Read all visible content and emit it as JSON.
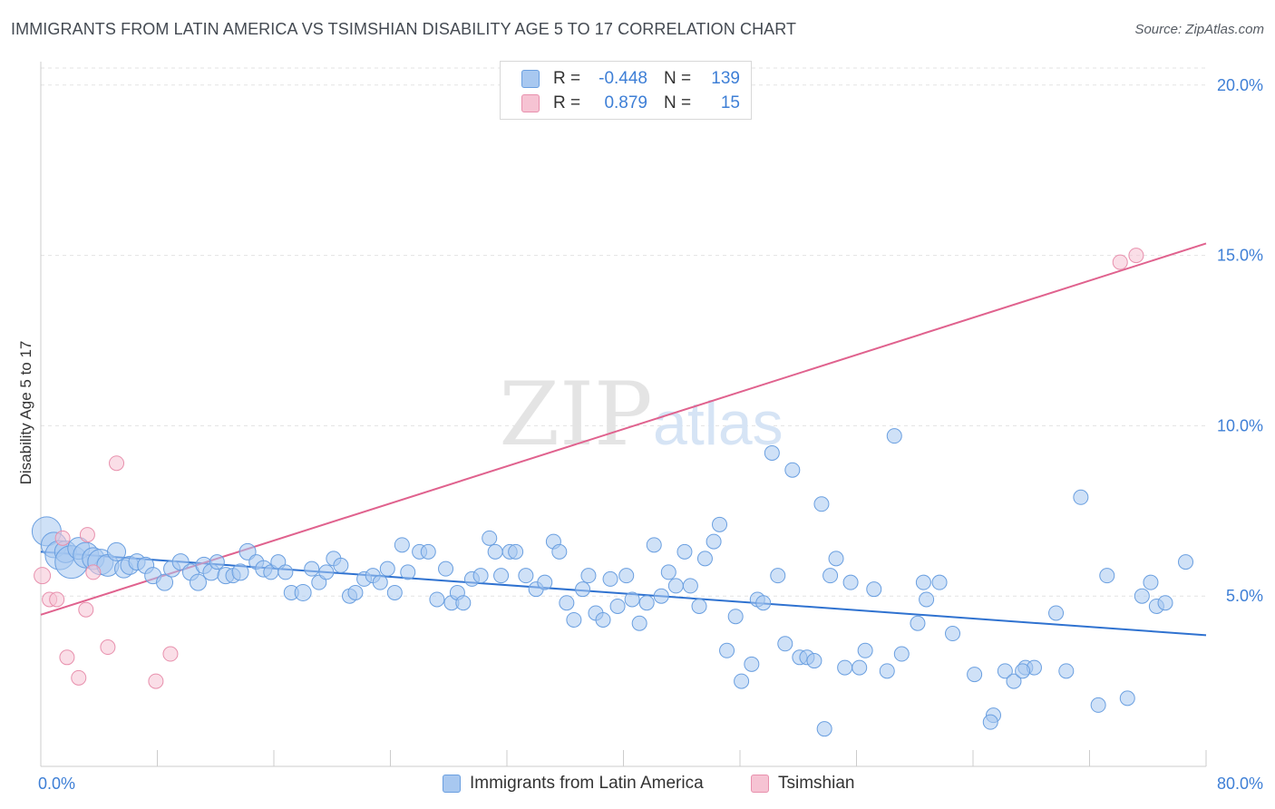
{
  "title": "IMMIGRANTS FROM LATIN AMERICA VS TSIMSHIAN DISABILITY AGE 5 TO 17 CORRELATION CHART",
  "source": "Source: ZipAtlas.com",
  "watermark": {
    "zip": "ZIP",
    "atlas": "atlas"
  },
  "colors": {
    "blue_fill": "#a8c8f0",
    "blue_stroke": "#6a9fe0",
    "blue_line": "#2f72d0",
    "pink_fill": "#f6c3d3",
    "pink_stroke": "#e890ad",
    "pink_line": "#e0628e",
    "axis_text": "#3e7fd6",
    "grid": "#e3e3e3"
  },
  "legend": {
    "rows": [
      {
        "swatch": "blue",
        "r_label": "R =",
        "r_value": "-0.448",
        "n_label": "N =",
        "n_value": "139"
      },
      {
        "swatch": "pink",
        "r_label": "R =",
        "r_value": "0.879",
        "n_label": "N =",
        "n_value": "15"
      }
    ]
  },
  "bottom_legend": [
    {
      "swatch": "blue",
      "label": "Immigrants from Latin America"
    },
    {
      "swatch": "pink",
      "label": "Tsimshian"
    }
  ],
  "chart_data": {
    "type": "scatter",
    "title": "IMMIGRANTS FROM LATIN AMERICA VS TSIMSHIAN DISABILITY AGE 5 TO 17 CORRELATION CHART",
    "xlabel": "",
    "ylabel": "Disability Age 5 to 17",
    "xlim": [
      0,
      80
    ],
    "ylim": [
      0,
      20.5
    ],
    "x_tick_labels": [
      {
        "value": 0,
        "label": "0.0%"
      },
      {
        "value": 80,
        "label": "80.0%"
      }
    ],
    "x_minor_ticks": [
      0,
      8,
      16,
      24,
      32,
      40,
      48,
      56,
      64,
      72,
      80
    ],
    "y_ticks": [
      {
        "value": 5,
        "label": "5.0%"
      },
      {
        "value": 10,
        "label": "10.0%"
      },
      {
        "value": 15,
        "label": "15.0%"
      },
      {
        "value": 20,
        "label": "20.0%"
      }
    ],
    "grid": true,
    "legend_position": "top-center",
    "series": [
      {
        "name": "Immigrants from Latin America",
        "color": "blue",
        "trend": {
          "x": [
            0,
            80
          ],
          "y": [
            6.3,
            3.85
          ]
        },
        "points": [
          [
            0.4,
            6.9,
            16
          ],
          [
            0.9,
            6.5,
            14
          ],
          [
            1.3,
            6.2,
            16
          ],
          [
            1.7,
            6.3,
            12
          ],
          [
            2.1,
            6.0,
            18
          ],
          [
            2.6,
            6.4,
            12
          ],
          [
            3.1,
            6.2,
            14
          ],
          [
            3.6,
            6.1,
            12
          ],
          [
            4.1,
            6.0,
            14
          ],
          [
            4.6,
            5.9,
            12
          ],
          [
            5.2,
            6.3,
            10
          ],
          [
            5.7,
            5.8,
            10
          ],
          [
            6.1,
            5.9,
            10
          ],
          [
            6.6,
            6.0,
            9
          ],
          [
            7.2,
            5.9,
            9
          ],
          [
            7.7,
            5.6,
            9
          ],
          [
            8.5,
            5.4,
            9
          ],
          [
            9.0,
            5.8,
            9
          ],
          [
            9.6,
            6.0,
            9
          ],
          [
            10.3,
            5.7,
            9
          ],
          [
            10.8,
            5.4,
            9
          ],
          [
            11.2,
            5.9,
            9
          ],
          [
            11.7,
            5.7,
            9
          ],
          [
            12.1,
            6.0,
            8
          ],
          [
            12.7,
            5.6,
            9
          ],
          [
            13.2,
            5.6,
            8
          ],
          [
            13.7,
            5.7,
            9
          ],
          [
            14.2,
            6.3,
            9
          ],
          [
            14.8,
            6.0,
            8
          ],
          [
            15.3,
            5.8,
            9
          ],
          [
            15.8,
            5.7,
            8
          ],
          [
            16.3,
            6.0,
            8
          ],
          [
            16.8,
            5.7,
            8
          ],
          [
            17.2,
            5.1,
            8
          ],
          [
            18.0,
            5.1,
            9
          ],
          [
            18.6,
            5.8,
            8
          ],
          [
            19.1,
            5.4,
            8
          ],
          [
            19.6,
            5.7,
            8
          ],
          [
            20.1,
            6.1,
            8
          ],
          [
            20.6,
            5.9,
            8
          ],
          [
            21.2,
            5.0,
            8
          ],
          [
            21.6,
            5.1,
            8
          ],
          [
            22.2,
            5.5,
            8
          ],
          [
            22.8,
            5.6,
            8
          ],
          [
            23.3,
            5.4,
            8
          ],
          [
            23.8,
            5.8,
            8
          ],
          [
            24.3,
            5.1,
            8
          ],
          [
            24.8,
            6.5,
            8
          ],
          [
            25.2,
            5.7,
            8
          ],
          [
            26.0,
            6.3,
            8
          ],
          [
            26.6,
            6.3,
            8
          ],
          [
            27.2,
            4.9,
            8
          ],
          [
            27.8,
            5.8,
            8
          ],
          [
            28.2,
            4.8,
            8
          ],
          [
            28.6,
            5.1,
            8
          ],
          [
            29.0,
            4.8,
            8
          ],
          [
            29.6,
            5.5,
            8
          ],
          [
            30.2,
            5.6,
            8
          ],
          [
            30.8,
            6.7,
            8
          ],
          [
            31.2,
            6.3,
            8
          ],
          [
            31.6,
            5.6,
            8
          ],
          [
            32.2,
            6.3,
            8
          ],
          [
            32.6,
            6.3,
            8
          ],
          [
            33.3,
            5.6,
            8
          ],
          [
            34.0,
            5.2,
            8
          ],
          [
            34.6,
            5.4,
            8
          ],
          [
            35.2,
            6.6,
            8
          ],
          [
            35.6,
            6.3,
            8
          ],
          [
            36.1,
            4.8,
            8
          ],
          [
            36.6,
            4.3,
            8
          ],
          [
            37.2,
            5.2,
            8
          ],
          [
            37.6,
            5.6,
            8
          ],
          [
            38.1,
            4.5,
            8
          ],
          [
            38.6,
            4.3,
            8
          ],
          [
            39.1,
            5.5,
            8
          ],
          [
            39.6,
            4.7,
            8
          ],
          [
            40.2,
            5.6,
            8
          ],
          [
            40.6,
            4.9,
            8
          ],
          [
            41.1,
            4.2,
            8
          ],
          [
            41.6,
            4.8,
            8
          ],
          [
            42.1,
            6.5,
            8
          ],
          [
            42.6,
            5.0,
            8
          ],
          [
            43.1,
            5.7,
            8
          ],
          [
            43.6,
            5.3,
            8
          ],
          [
            44.2,
            6.3,
            8
          ],
          [
            44.6,
            5.3,
            8
          ],
          [
            45.2,
            4.7,
            8
          ],
          [
            45.6,
            6.1,
            8
          ],
          [
            46.2,
            6.6,
            8
          ],
          [
            46.6,
            7.1,
            8
          ],
          [
            47.1,
            3.4,
            8
          ],
          [
            47.7,
            4.4,
            8
          ],
          [
            48.1,
            2.5,
            8
          ],
          [
            48.8,
            3.0,
            8
          ],
          [
            49.2,
            4.9,
            8
          ],
          [
            49.6,
            4.8,
            8
          ],
          [
            50.2,
            9.2,
            8
          ],
          [
            50.6,
            5.6,
            8
          ],
          [
            51.1,
            3.6,
            8
          ],
          [
            51.6,
            8.7,
            8
          ],
          [
            52.1,
            3.2,
            8
          ],
          [
            52.6,
            3.2,
            8
          ],
          [
            53.1,
            3.1,
            8
          ],
          [
            53.6,
            7.7,
            8
          ],
          [
            54.2,
            5.6,
            8
          ],
          [
            54.6,
            6.1,
            8
          ],
          [
            55.2,
            2.9,
            8
          ],
          [
            55.6,
            5.4,
            8
          ],
          [
            56.2,
            2.9,
            8
          ],
          [
            56.6,
            3.4,
            8
          ],
          [
            57.2,
            5.2,
            8
          ],
          [
            58.1,
            2.8,
            8
          ],
          [
            58.6,
            9.7,
            8
          ],
          [
            59.1,
            3.3,
            8
          ],
          [
            60.2,
            4.2,
            8
          ],
          [
            60.6,
            5.4,
            8
          ],
          [
            60.8,
            4.9,
            8
          ],
          [
            61.7,
            5.4,
            8
          ],
          [
            62.6,
            3.9,
            8
          ],
          [
            64.1,
            2.7,
            8
          ],
          [
            65.4,
            1.5,
            8
          ],
          [
            66.2,
            2.8,
            8
          ],
          [
            66.8,
            2.5,
            8
          ],
          [
            67.6,
            2.9,
            8
          ],
          [
            68.2,
            2.9,
            8
          ],
          [
            69.7,
            4.5,
            8
          ],
          [
            70.4,
            2.8,
            8
          ],
          [
            71.4,
            7.9,
            8
          ],
          [
            72.6,
            1.8,
            8
          ],
          [
            73.2,
            5.6,
            8
          ],
          [
            74.6,
            2.0,
            8
          ],
          [
            75.6,
            5.0,
            8
          ],
          [
            76.2,
            5.4,
            8
          ],
          [
            76.6,
            4.7,
            8
          ],
          [
            77.2,
            4.8,
            8
          ],
          [
            78.6,
            6.0,
            8
          ],
          [
            65.2,
            1.3,
            8
          ],
          [
            67.4,
            2.8,
            8
          ],
          [
            53.8,
            1.1,
            8
          ]
        ]
      },
      {
        "name": "Tsimshian",
        "color": "pink",
        "trend": {
          "x": [
            0,
            80
          ],
          "y": [
            4.45,
            15.35
          ]
        },
        "points": [
          [
            0.1,
            5.6,
            9
          ],
          [
            0.6,
            4.9,
            8
          ],
          [
            1.1,
            4.9,
            8
          ],
          [
            1.5,
            6.7,
            8
          ],
          [
            1.8,
            3.2,
            8
          ],
          [
            2.6,
            2.6,
            8
          ],
          [
            3.1,
            4.6,
            8
          ],
          [
            3.2,
            6.8,
            8
          ],
          [
            3.6,
            5.7,
            8
          ],
          [
            4.6,
            3.5,
            8
          ],
          [
            5.2,
            8.9,
            8
          ],
          [
            7.9,
            2.5,
            8
          ],
          [
            8.9,
            3.3,
            8
          ],
          [
            74.1,
            14.8,
            8
          ],
          [
            75.2,
            15.0,
            8
          ]
        ]
      }
    ]
  }
}
